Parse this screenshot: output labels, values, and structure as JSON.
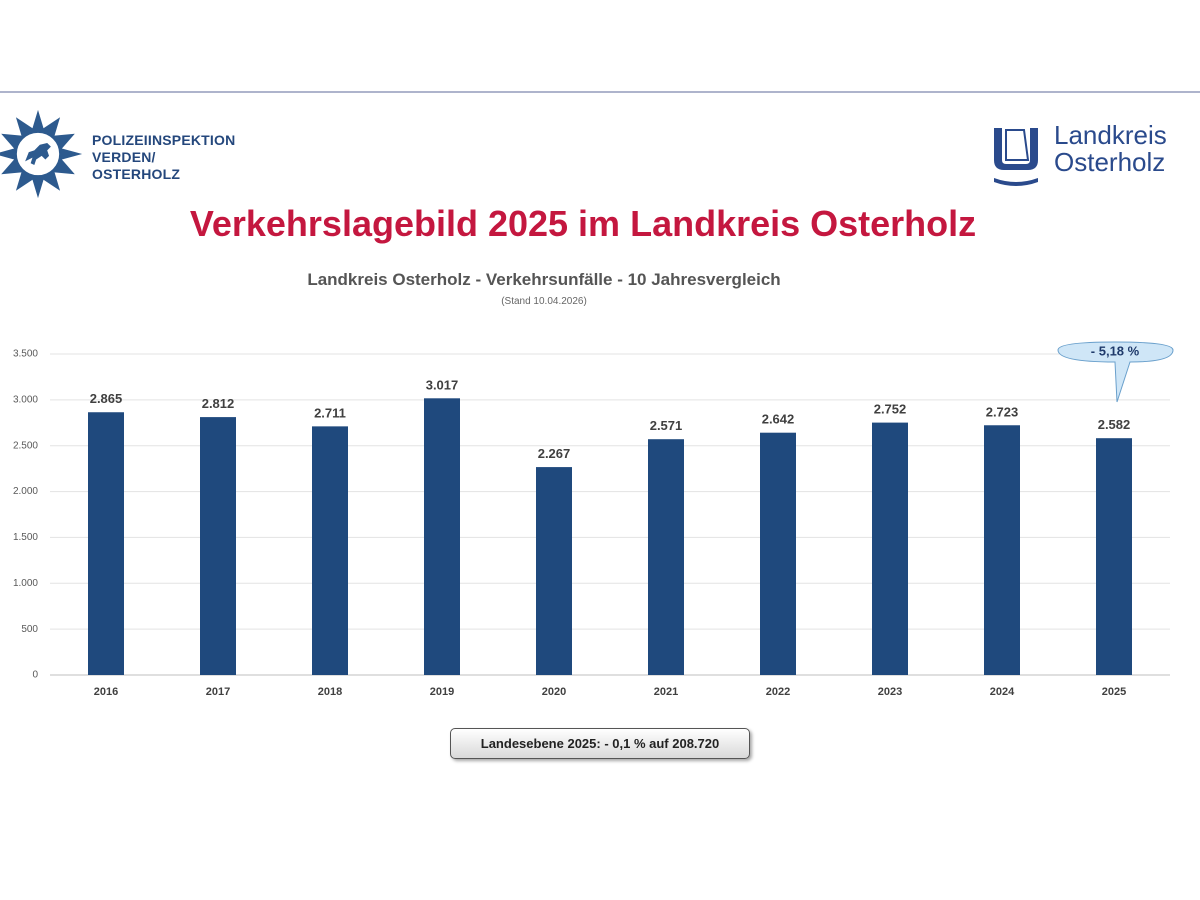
{
  "header": {
    "police_org_lines": [
      "POLIZEIINSPEKTION",
      "VERDEN/",
      "OSTERHOLZ"
    ],
    "landkreis_lines": [
      "Landkreis",
      "Osterholz"
    ]
  },
  "main_title": "Verkehrslagebild 2025 im Landkreis Osterholz",
  "callout": {
    "text": "- 5,18 %"
  },
  "footnote": "Landesebene 2025: - 0,1 % auf 208.720",
  "colors": {
    "bar": "#1f497d",
    "title": "#c4173f",
    "callout_fill": "#cfe6f7",
    "callout_text": "#1f3a6b"
  },
  "chart_data": {
    "type": "bar",
    "title": "Landkreis Osterholz - Verkehrsunfälle - 10 Jahresvergleich",
    "subtitle": "(Stand 10.04.2026)",
    "categories": [
      "2016",
      "2017",
      "2018",
      "2019",
      "2020",
      "2021",
      "2022",
      "2023",
      "2024",
      "2025"
    ],
    "values": [
      2865,
      2812,
      2711,
      3017,
      2267,
      2571,
      2642,
      2752,
      2723,
      2582
    ],
    "data_labels": [
      "2.865",
      "2.812",
      "2.711",
      "3.017",
      "2.267",
      "2.571",
      "2.642",
      "2.752",
      "2.723",
      "2.582"
    ],
    "yticks": [
      0,
      500,
      1000,
      1500,
      2000,
      2500,
      3000,
      3500
    ],
    "ytick_labels": [
      "0",
      "500",
      "1.000",
      "1.500",
      "2.000",
      "2.500",
      "3.000",
      "3.500"
    ],
    "ylim": [
      0,
      3500
    ],
    "xlabel": "",
    "ylabel": "",
    "grid": true
  }
}
